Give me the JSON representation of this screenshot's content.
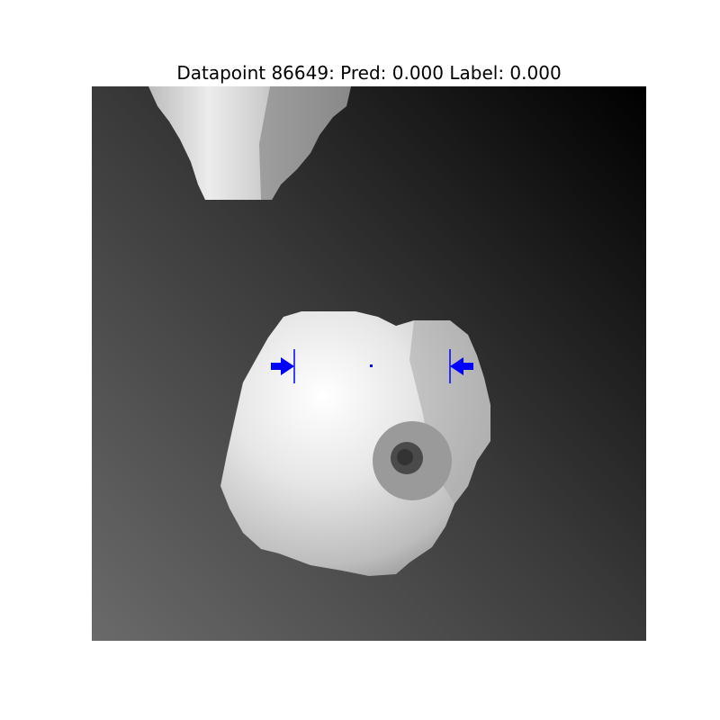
{
  "figure": {
    "title": "Datapoint 86649: Pred: 0.000 Label: 0.000"
  },
  "colors": {
    "marker": "#0000ff",
    "background": "#ffffff"
  },
  "icons": {
    "left_marker": "arrow-right-icon",
    "right_marker": "arrow-left-icon"
  }
}
